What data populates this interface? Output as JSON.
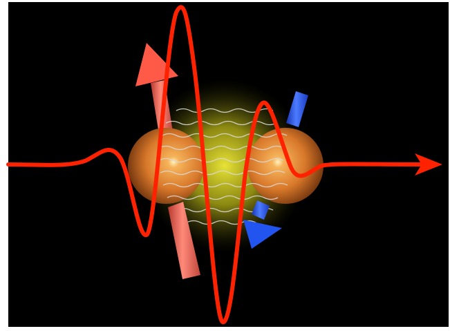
{
  "scene": {
    "background_color": "#000000",
    "frame_color": "#ffffff",
    "wave_color": "#ff2a00",
    "sphere_color": "#e8892e",
    "glow_color": "#e8e020",
    "spin_up_color": "#f05a4a",
    "spin_down_color": "#1f4fe8",
    "bond_line_color": "#d8d8d8",
    "icons": [
      "arrow-right-icon",
      "spin-up-arrow-icon",
      "spin-down-arrow-icon"
    ]
  }
}
